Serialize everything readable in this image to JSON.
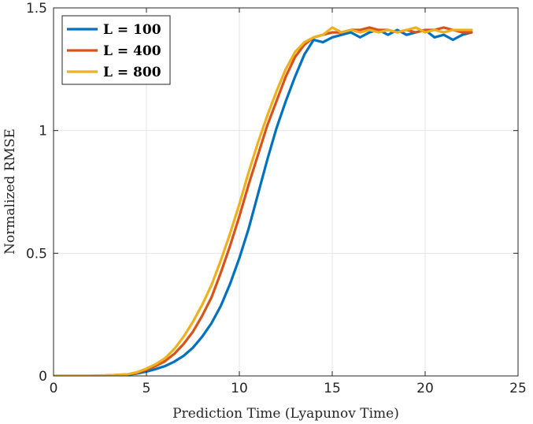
{
  "chart_data": {
    "type": "line",
    "title": "",
    "xlabel": "Prediction Time (Lyapunov Time)",
    "ylabel": "Normalized RMSE",
    "xlim": [
      0,
      25
    ],
    "ylim": [
      0,
      1.5
    ],
    "xticks": [
      0,
      5,
      10,
      15,
      20,
      25
    ],
    "yticks": [
      0,
      0.5,
      1,
      1.5
    ],
    "xtick_labels": [
      "0",
      "5",
      "10",
      "15",
      "20",
      "25"
    ],
    "ytick_labels": [
      "0",
      "0.5",
      "1",
      "1.5"
    ],
    "grid": true,
    "legend_position": "top-left",
    "series": [
      {
        "name": "L = 100",
        "color": "#0072BD",
        "x": [
          0,
          2,
          3,
          4,
          4.5,
          5,
          5.5,
          6,
          6.5,
          7,
          7.5,
          8,
          8.5,
          9,
          9.5,
          10,
          10.5,
          11,
          11.5,
          12,
          12.5,
          13,
          13.5,
          14,
          14.5,
          15,
          15.5,
          16,
          16.5,
          17,
          17.5,
          18,
          18.5,
          19,
          19.5,
          20,
          20.5,
          21,
          21.5,
          22,
          22.5
        ],
        "y": [
          0,
          0,
          0.002,
          0.005,
          0.01,
          0.018,
          0.028,
          0.04,
          0.058,
          0.082,
          0.115,
          0.16,
          0.215,
          0.285,
          0.375,
          0.48,
          0.6,
          0.74,
          0.88,
          1.01,
          1.12,
          1.22,
          1.31,
          1.37,
          1.36,
          1.38,
          1.39,
          1.4,
          1.38,
          1.4,
          1.41,
          1.39,
          1.41,
          1.39,
          1.4,
          1.41,
          1.38,
          1.39,
          1.37,
          1.39,
          1.4
        ]
      },
      {
        "name": "L = 400",
        "color": "#D95319",
        "x": [
          0,
          2,
          3,
          4,
          4.5,
          5,
          5.5,
          6,
          6.5,
          7,
          7.5,
          8,
          8.5,
          9,
          9.5,
          10,
          10.5,
          11,
          11.5,
          12,
          12.5,
          13,
          13.5,
          14,
          14.5,
          15,
          15.5,
          16,
          16.5,
          17,
          17.5,
          18,
          18.5,
          19,
          19.5,
          20,
          20.5,
          21,
          21.5,
          22,
          22.5
        ],
        "y": [
          0,
          0,
          0.002,
          0.006,
          0.013,
          0.025,
          0.04,
          0.06,
          0.09,
          0.13,
          0.18,
          0.245,
          0.32,
          0.42,
          0.53,
          0.65,
          0.78,
          0.9,
          1.02,
          1.12,
          1.22,
          1.3,
          1.35,
          1.38,
          1.39,
          1.4,
          1.4,
          1.41,
          1.41,
          1.42,
          1.41,
          1.41,
          1.4,
          1.41,
          1.4,
          1.41,
          1.41,
          1.42,
          1.41,
          1.4,
          1.4
        ]
      },
      {
        "name": "L = 800",
        "color": "#EDB120",
        "x": [
          0,
          2,
          3,
          4,
          4.5,
          5,
          5.5,
          6,
          6.5,
          7,
          7.5,
          8,
          8.5,
          9,
          9.5,
          10,
          10.5,
          11,
          11.5,
          12,
          12.5,
          13,
          13.5,
          14,
          14.5,
          15,
          15.5,
          16,
          16.5,
          17,
          17.5,
          18,
          18.5,
          19,
          19.5,
          20,
          20.5,
          21,
          21.5,
          22,
          22.5
        ],
        "y": [
          0,
          0,
          0.002,
          0.007,
          0.015,
          0.03,
          0.048,
          0.072,
          0.11,
          0.16,
          0.22,
          0.29,
          0.37,
          0.47,
          0.58,
          0.7,
          0.83,
          0.95,
          1.06,
          1.16,
          1.25,
          1.32,
          1.36,
          1.38,
          1.39,
          1.42,
          1.4,
          1.41,
          1.4,
          1.41,
          1.4,
          1.41,
          1.4,
          1.41,
          1.42,
          1.4,
          1.41,
          1.4,
          1.41,
          1.41,
          1.41
        ]
      }
    ]
  }
}
